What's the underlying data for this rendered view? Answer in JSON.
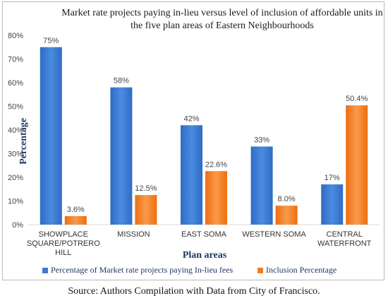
{
  "chart_data": {
    "type": "bar",
    "title": "Market rate projects paying in-lieu versus level of inclusion of affordable units in the five plan areas of Eastern Neighbourhoods",
    "xlabel": "Plan areas",
    "ylabel": "Percentage",
    "categories": [
      "SHOWPLACE SQUARE/POTRERO HILL",
      "MISSION",
      "EAST SOMA",
      "WESTERN SOMA",
      "CENTRAL WATERFRONT"
    ],
    "category_lines": [
      [
        "SHOWPLACE",
        "SQUARE/POTRERO",
        "HILL"
      ],
      [
        "MISSION"
      ],
      [
        "EAST SOMA"
      ],
      [
        "WESTERN SOMA"
      ],
      [
        "CENTRAL",
        "WATERFRONT"
      ]
    ],
    "yticks": [
      "0%",
      "10%",
      "20%",
      "30%",
      "40%",
      "50%",
      "60%",
      "70%",
      "80%"
    ],
    "ylim": [
      0,
      80
    ],
    "grid": false,
    "legend_position": "bottom",
    "series": [
      {
        "name": "Percentage of Market rate projects paying In-lieu fees",
        "values": [
          75,
          58,
          42,
          33,
          17
        ],
        "labels": [
          "75%",
          "58%",
          "42%",
          "33%",
          "17%"
        ],
        "color": "#3b7bd1"
      },
      {
        "name": "Inclusion Percentage",
        "values": [
          3.6,
          12.5,
          22.6,
          8.0,
          50.4
        ],
        "labels": [
          "3.6%",
          "12.5%",
          "22.6%",
          "8.0%",
          "50.4%"
        ],
        "color": "#f47b20"
      }
    ]
  },
  "source": "Source: Authors Compilation with Data from City of Francisco."
}
